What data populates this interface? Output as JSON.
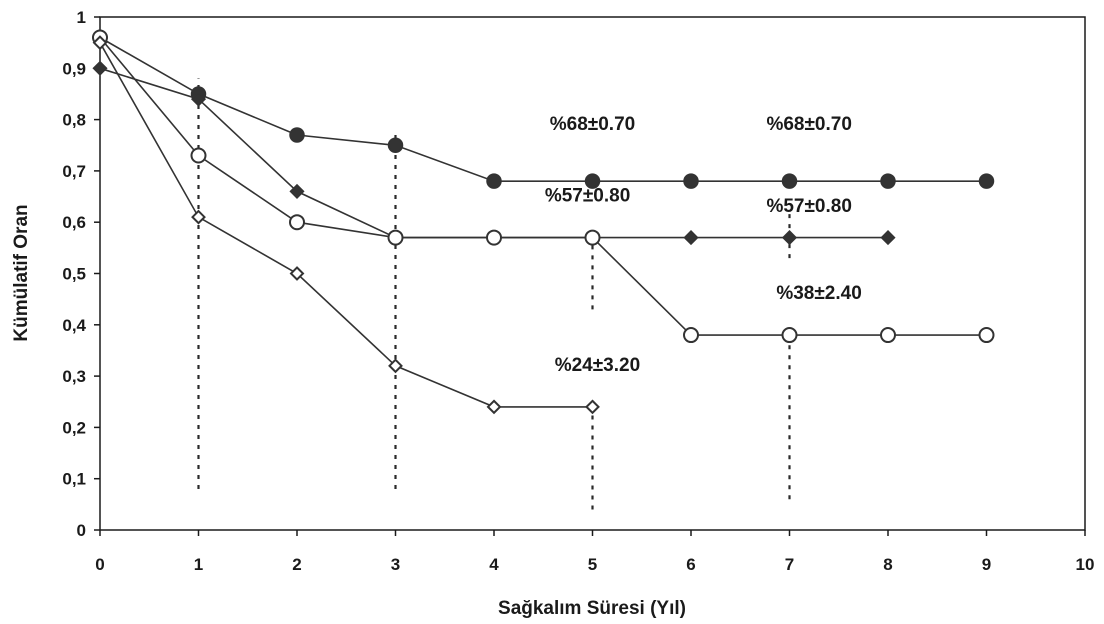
{
  "chart_data": {
    "type": "line",
    "title": "",
    "xlabel": "Sağkalım Süresi (Yıl)",
    "ylabel": "Kümülatif Oran",
    "xlim": [
      0,
      10
    ],
    "ylim": [
      0,
      1
    ],
    "x_ticks": [
      "0",
      "1",
      "2",
      "3",
      "4",
      "5",
      "6",
      "7",
      "8",
      "9",
      "10"
    ],
    "y_ticks": [
      "0",
      "0,1",
      "0,2",
      "0,3",
      "0,4",
      "0,5",
      "0,6",
      "0,7",
      "0,8",
      "0,9",
      "1"
    ],
    "grid": false,
    "series": [
      {
        "marker": "filled-circle",
        "color": "#333333",
        "points": [
          [
            0,
            0.96
          ],
          [
            1,
            0.85
          ],
          [
            2,
            0.77
          ],
          [
            3,
            0.75
          ],
          [
            4,
            0.68
          ],
          [
            5,
            0.68
          ],
          [
            6,
            0.68
          ],
          [
            7,
            0.68
          ],
          [
            8,
            0.68
          ],
          [
            9,
            0.68
          ]
        ]
      },
      {
        "marker": "filled-diamond",
        "color": "#333333",
        "points": [
          [
            0,
            0.9
          ],
          [
            1,
            0.84
          ],
          [
            2,
            0.66
          ],
          [
            3,
            0.57
          ],
          [
            4,
            0.57
          ],
          [
            5,
            0.57
          ],
          [
            6,
            0.57
          ],
          [
            7,
            0.57
          ],
          [
            8,
            0.57
          ]
        ]
      },
      {
        "marker": "open-circle",
        "color": "#333333",
        "points": [
          [
            0,
            0.96
          ],
          [
            1,
            0.73
          ],
          [
            2,
            0.6
          ],
          [
            3,
            0.57
          ],
          [
            4,
            0.57
          ],
          [
            5,
            0.57
          ],
          [
            6,
            0.38
          ],
          [
            7,
            0.38
          ],
          [
            8,
            0.38
          ],
          [
            9,
            0.38
          ]
        ]
      },
      {
        "marker": "open-diamond",
        "color": "#333333",
        "points": [
          [
            0,
            0.95
          ],
          [
            1,
            0.61
          ],
          [
            2,
            0.5
          ],
          [
            3,
            0.32
          ],
          [
            4,
            0.24
          ],
          [
            5,
            0.24
          ]
        ]
      }
    ],
    "reference_lines": [
      {
        "x": 1,
        "y_from": 0.08,
        "y_to": 0.88
      },
      {
        "x": 3,
        "y_from": 0.08,
        "y_to": 0.78
      },
      {
        "x": 5,
        "y_from": 0.04,
        "y_to": 0.24
      },
      {
        "x": 5,
        "y_from": 0.43,
        "y_to": 0.57
      },
      {
        "x": 7,
        "y_from": 0.06,
        "y_to": 0.38
      },
      {
        "x": 7,
        "y_from": 0.53,
        "y_to": 0.62
      }
    ],
    "annotations": [
      {
        "text": "%68±0.70",
        "x": 5,
        "y": 0.78
      },
      {
        "text": "%68±0.70",
        "x": 7.2,
        "y": 0.78
      },
      {
        "text": "%57±0.80",
        "x": 4.95,
        "y": 0.64
      },
      {
        "text": "%57±0.80",
        "x": 7.2,
        "y": 0.62
      },
      {
        "text": "%38±2.40",
        "x": 7.3,
        "y": 0.45
      },
      {
        "text": "%24±3.20",
        "x": 5.05,
        "y": 0.31
      }
    ]
  }
}
